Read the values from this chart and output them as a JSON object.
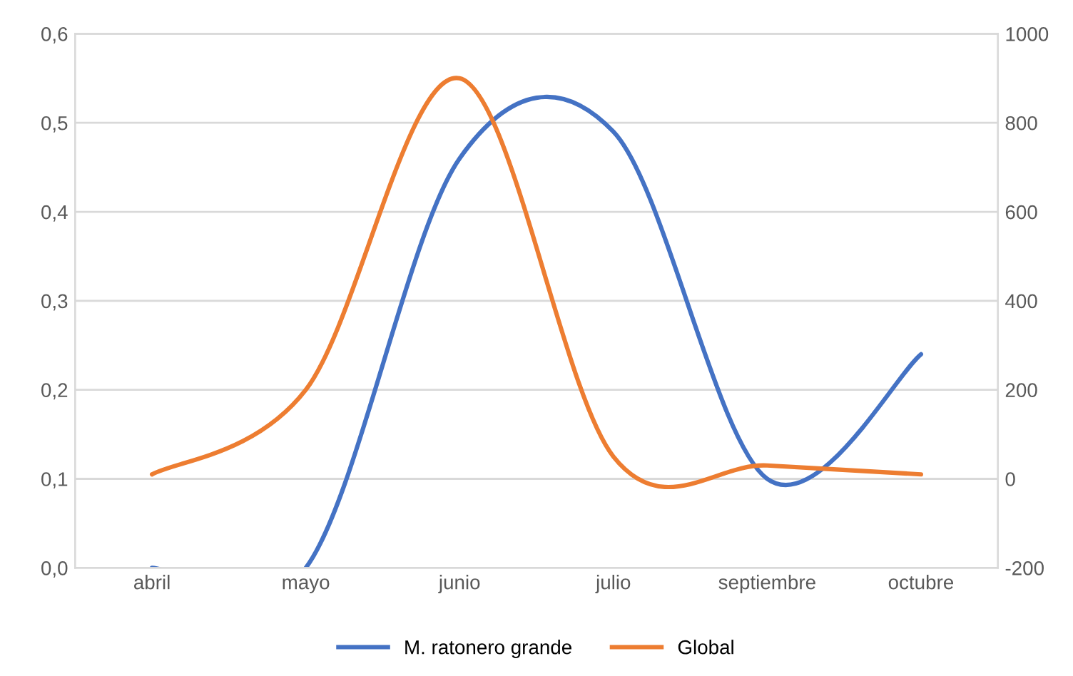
{
  "chart_data": {
    "type": "line",
    "categories": [
      "abril",
      "mayo",
      "junio",
      "julio",
      "septiembre",
      "octubre"
    ],
    "series": [
      {
        "name": "M. ratonero grande",
        "color": "#4472c4",
        "values": [
          0,
          0,
          0.46,
          0.49,
          0.1,
          0.24
        ]
      },
      {
        "name": "Global",
        "color": "#ed7d31",
        "axis": "y2",
        "values": [
          10,
          200,
          900,
          50,
          30,
          10
        ]
      }
    ],
    "ylim": [
      0,
      0.6
    ],
    "yticks": [
      {
        "value": 0,
        "label": "0,0"
      },
      {
        "value": 0.1,
        "label": "0,1"
      },
      {
        "value": 0.2,
        "label": "0,2"
      },
      {
        "value": 0.3,
        "label": "0,3"
      },
      {
        "value": 0.4,
        "label": "0,4"
      },
      {
        "value": 0.5,
        "label": "0,5"
      },
      {
        "value": 0.6,
        "label": "0,6"
      }
    ],
    "y2lim": [
      -200,
      1000
    ],
    "y2ticks": [
      -200,
      0,
      200,
      400,
      600,
      800,
      1000
    ],
    "grid": "y",
    "legend": "bottom",
    "marker": "none",
    "line_style": "solid"
  }
}
